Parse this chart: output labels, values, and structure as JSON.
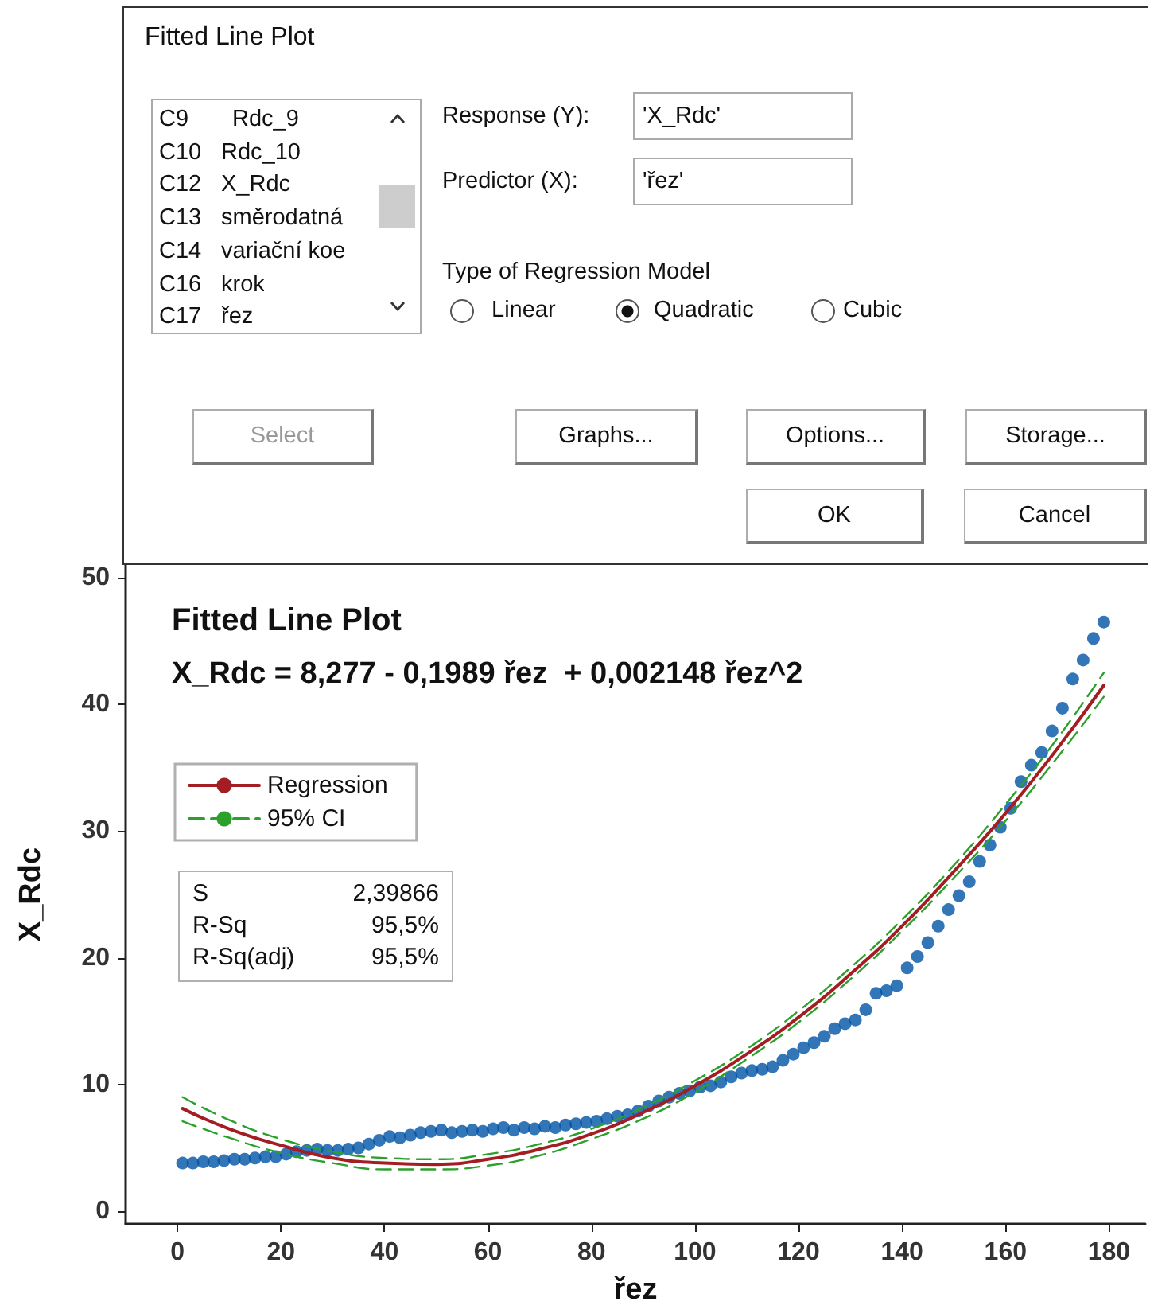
{
  "chart_data": [
    {
      "type": "other",
      "title": "Fitted Line Plot",
      "annotations": [
        "C9",
        "Rdc_9",
        "C10",
        "Rdc_10",
        "C12",
        "X_Rdc",
        "C13",
        "směrodatná",
        "C14",
        "variační koe",
        "C16",
        "krok",
        "C17",
        "řez",
        "Response (Y):",
        "'X_Rdc'",
        "Predictor (X):",
        "'řez'",
        "Type of Regression Model",
        "Linear",
        "Quadratic",
        "Cubic",
        "Select",
        "Graphs...",
        "Options...",
        "Storage...",
        "OK",
        "Cancel"
      ]
    },
    {
      "type": "scatter",
      "title": "Fitted Line Plot",
      "subtitle": "X_Rdc = 8,277 - 0,1989 řez  + 0,002148 řez^2",
      "xlabel": "řez",
      "ylabel": "X_Rdc",
      "xlim": [
        -10,
        187
      ],
      "xticks": [
        0,
        20,
        40,
        60,
        80,
        100,
        120,
        140,
        160,
        180
      ],
      "ylim": [
        -1,
        51
      ],
      "yticks": [
        0,
        10,
        20,
        30,
        40,
        50
      ],
      "legend": "top left",
      "marker": "circle",
      "annotations": [
        "S",
        "2,39866",
        "R-Sq",
        "95,5%",
        "R-Sq(adj)",
        "95,5%"
      ],
      "series": [
        {
          "color": "#0054a6",
          "x": [
            1,
            3,
            5,
            7,
            9,
            11,
            13,
            15,
            17,
            19,
            21,
            23,
            25,
            27,
            29,
            31,
            33,
            35,
            37,
            39,
            41,
            43,
            45,
            47,
            49,
            51,
            53,
            55,
            57,
            59,
            61,
            63,
            65,
            67,
            69,
            71,
            73,
            75,
            77,
            79,
            81,
            83,
            85,
            87,
            89,
            91,
            93,
            95,
            97,
            99,
            101,
            103,
            105,
            107,
            109,
            111,
            113,
            115,
            117,
            119,
            121,
            123,
            125,
            127,
            129,
            131,
            133,
            135,
            137,
            139,
            141,
            143,
            145,
            147,
            149,
            151,
            153,
            155,
            157,
            159,
            161,
            163,
            165,
            167,
            169,
            171,
            173,
            175,
            177,
            179
          ],
          "values": [
            3.8,
            3.8,
            3.9,
            3.9,
            4.0,
            4.1,
            4.1,
            4.2,
            4.3,
            4.3,
            4.5,
            4.7,
            4.8,
            4.9,
            4.8,
            4.8,
            4.9,
            5.0,
            5.3,
            5.6,
            5.9,
            5.8,
            6.0,
            6.2,
            6.3,
            6.4,
            6.2,
            6.3,
            6.4,
            6.3,
            6.5,
            6.6,
            6.4,
            6.6,
            6.5,
            6.7,
            6.6,
            6.8,
            6.9,
            7.0,
            7.1,
            7.3,
            7.5,
            7.6,
            7.9,
            8.3,
            8.7,
            9.0,
            9.3,
            9.5,
            9.8,
            9.9,
            10.2,
            10.6,
            10.9,
            11.1,
            11.2,
            11.4,
            11.9,
            12.4,
            12.9,
            13.3,
            13.8,
            14.4,
            14.8,
            15.1,
            15.9,
            17.2,
            17.4,
            17.8,
            19.2,
            20.1,
            21.2,
            22.5,
            23.8,
            24.9,
            26.0,
            27.6,
            28.9,
            30.3,
            31.8,
            33.9,
            35.2,
            36.2,
            37.9,
            39.7,
            42.0,
            43.5,
            45.2,
            46.5
          ]
        },
        {
          "type": "line",
          "name": "Regression",
          "color": "#a31e22",
          "marker": "none",
          "line_style": "solid",
          "x": [
            1,
            10,
            20,
            30,
            40,
            50,
            60,
            70,
            80,
            90,
            100,
            110,
            120,
            130,
            140,
            150,
            160,
            170,
            179
          ],
          "values": [
            8.1,
            6.5,
            5.2,
            4.2,
            3.8,
            3.7,
            4.1,
            4.9,
            6.1,
            7.8,
            9.9,
            12.4,
            15.3,
            18.7,
            22.5,
            26.8,
            31.4,
            36.5,
            41.5
          ]
        },
        {
          "type": "line",
          "name": "95% CI",
          "color": "#2ca02c",
          "marker": "none",
          "line_style": "dashed",
          "x": [
            1,
            10,
            20,
            30,
            40,
            50,
            60,
            70,
            80,
            90,
            100,
            110,
            120,
            130,
            140,
            150,
            160,
            170,
            179
          ],
          "values": [
            9.0,
            7.2,
            5.7,
            4.7,
            4.2,
            4.1,
            4.5,
            5.3,
            6.5,
            8.2,
            10.3,
            12.8,
            15.8,
            19.2,
            23.0,
            27.3,
            32.1,
            37.3,
            42.5
          ]
        },
        {
          "type": "line",
          "color": "#2ca02c",
          "marker": "none",
          "line_style": "dashed",
          "x": [
            1,
            10,
            20,
            30,
            40,
            50,
            60,
            70,
            80,
            90,
            100,
            110,
            120,
            130,
            140,
            150,
            160,
            170,
            179
          ],
          "values": [
            7.1,
            5.8,
            4.6,
            3.8,
            3.3,
            3.3,
            3.6,
            4.4,
            5.7,
            7.3,
            9.4,
            12.0,
            14.9,
            18.3,
            22.1,
            26.3,
            30.8,
            35.8,
            40.6
          ]
        }
      ]
    }
  ]
}
